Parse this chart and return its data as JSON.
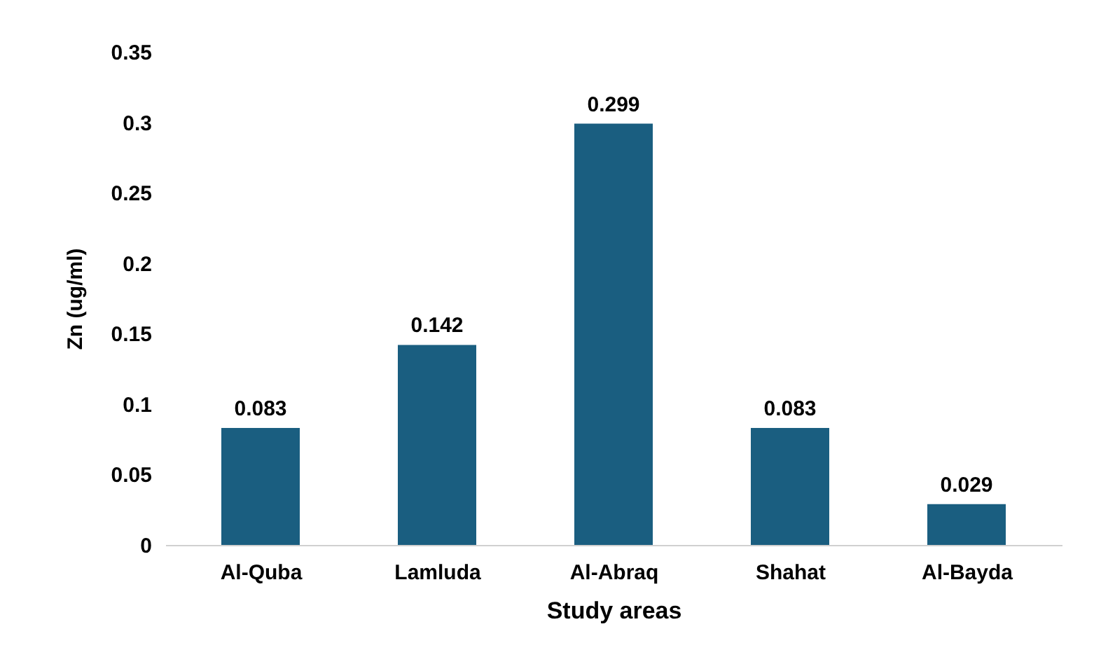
{
  "chart_data": {
    "type": "bar",
    "xlabel": "Study areas",
    "ylabel": "Zn (ug/ml)",
    "categories": [
      "Al-Quba",
      "Lamluda",
      "Al-Abraq",
      "Shahat",
      "Al-Bayda"
    ],
    "values": [
      0.083,
      0.142,
      0.299,
      0.083,
      0.029
    ],
    "color": "#1a5e80",
    "ylim": [
      0,
      0.35
    ],
    "yticks": [
      0,
      0.05,
      0.1,
      0.15,
      0.2,
      0.25,
      0.3,
      0.35
    ],
    "data_labels": true,
    "grid": false
  }
}
